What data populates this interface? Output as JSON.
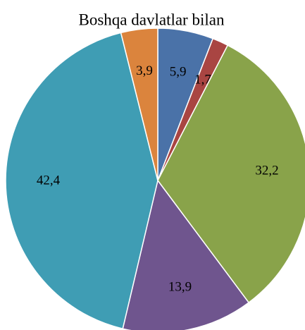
{
  "chart_data": {
    "type": "pie",
    "title": "Boshqa davlatlar bilan",
    "categories": [
      null,
      null,
      null,
      null,
      null,
      null
    ],
    "values": [
      5.9,
      1.7,
      32.2,
      13.9,
      42.4,
      3.9
    ],
    "value_labels": [
      "5,9",
      "1,7",
      "32,2",
      "13,9",
      "42,4",
      "3,9"
    ],
    "colors": [
      "#4a72a8",
      "#a94542",
      "#89a34a",
      "#6f558e",
      "#3f9db4",
      "#db843d"
    ]
  }
}
